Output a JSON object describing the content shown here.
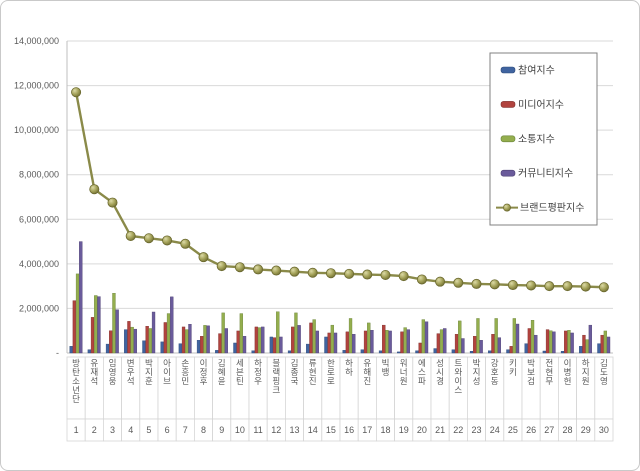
{
  "chart_data": {
    "type": "bar",
    "title": "",
    "xlabel": "",
    "ylabel": "",
    "ylim": [
      0,
      14000000
    ],
    "ytick_interval": 2000000,
    "ytick_values": [
      0,
      2000000,
      4000000,
      6000000,
      8000000,
      10000000,
      12000000,
      14000000
    ],
    "ytick_labels": [
      "-",
      "2,000,000",
      "4,000,000",
      "6,000,000",
      "8,000,000",
      "10,000,000",
      "12,000,000",
      "14,000,000"
    ],
    "grid": true,
    "legend_position": "right-top",
    "categories": [
      "방탄소년단",
      "유재석",
      "임영웅",
      "변우석",
      "박지훈",
      "아이브",
      "손흥민",
      "이정후",
      "김혜윤",
      "세븐틴",
      "하정우",
      "블랙핑크",
      "김종국",
      "류현진",
      "한로로",
      "하하",
      "유해진",
      "빅뱅",
      "워너원",
      "에스파",
      "성시경",
      "트와이스",
      "박지성",
      "강호동",
      "키키",
      "박보검",
      "전현무",
      "이병헌",
      "하지원",
      "김도영"
    ],
    "ranks": [
      1,
      2,
      3,
      4,
      5,
      6,
      7,
      8,
      9,
      10,
      11,
      12,
      13,
      14,
      15,
      16,
      17,
      18,
      19,
      20,
      21,
      22,
      23,
      24,
      25,
      26,
      27,
      28,
      29,
      30
    ],
    "series": [
      {
        "name": "참여지수",
        "type": "bar",
        "color": "#4064a0",
        "stroke": "#2d4a7a",
        "values": [
          300000,
          150000,
          400000,
          1050000,
          550000,
          500000,
          420000,
          570000,
          120000,
          450000,
          100000,
          720000,
          100000,
          400000,
          720000,
          120000,
          150000,
          100000,
          50000,
          100000,
          200000,
          150000,
          80000,
          100000,
          150000,
          420000,
          90000,
          80000,
          300000,
          420000
        ]
      },
      {
        "name": "미디어지수",
        "type": "bar",
        "color": "#b1433e",
        "stroke": "#7e2f2c",
        "values": [
          2350000,
          1600000,
          1000000,
          1420000,
          1200000,
          1370000,
          1170000,
          750000,
          870000,
          990000,
          1170000,
          690000,
          1170000,
          1350000,
          900000,
          950000,
          990000,
          1250000,
          950000,
          450000,
          870000,
          840000,
          750000,
          840000,
          300000,
          1100000,
          1050000,
          990000,
          800000,
          800000
        ]
      },
      {
        "name": "소통지수",
        "type": "bar",
        "color": "#94ae4e",
        "stroke": "#69833a",
        "values": [
          3550000,
          2580000,
          2680000,
          1160000,
          1100000,
          1770000,
          1050000,
          1240000,
          1800000,
          1770000,
          1140000,
          1850000,
          1800000,
          1500000,
          1250000,
          1550000,
          1350000,
          1020000,
          1140000,
          1500000,
          1050000,
          1440000,
          1550000,
          1550000,
          1550000,
          1470000,
          1000000,
          1020000,
          600000,
          990000
        ]
      },
      {
        "name": "커뮤니티지수",
        "type": "bar",
        "color": "#6a5b9b",
        "stroke": "#4e4173",
        "values": [
          5000000,
          2530000,
          1940000,
          1070000,
          1840000,
          2520000,
          1290000,
          1220000,
          1100000,
          750000,
          1170000,
          720000,
          1240000,
          990000,
          900000,
          840000,
          1020000,
          990000,
          1050000,
          1400000,
          1100000,
          650000,
          570000,
          690000,
          1300000,
          800000,
          950000,
          900000,
          1250000,
          720000
        ]
      },
      {
        "name": "브랜드평판지수",
        "type": "line",
        "color": "#8a8a49",
        "stroke": "#6b692f",
        "values": [
          11700000,
          7350000,
          6750000,
          5250000,
          5150000,
          5050000,
          4900000,
          4300000,
          3900000,
          3850000,
          3750000,
          3700000,
          3650000,
          3600000,
          3580000,
          3550000,
          3520000,
          3500000,
          3450000,
          3300000,
          3200000,
          3150000,
          3100000,
          3080000,
          3050000,
          3030000,
          3000000,
          3000000,
          2980000,
          2950000
        ]
      }
    ],
    "axis_text_color": "#595959",
    "gridline_color": "#d9d9d9",
    "axis_line_color": "#bfbfbf",
    "label_box_border_color": "#d5d5d5",
    "legend_border_color": "#808080",
    "legend_text_color": "#404040"
  }
}
